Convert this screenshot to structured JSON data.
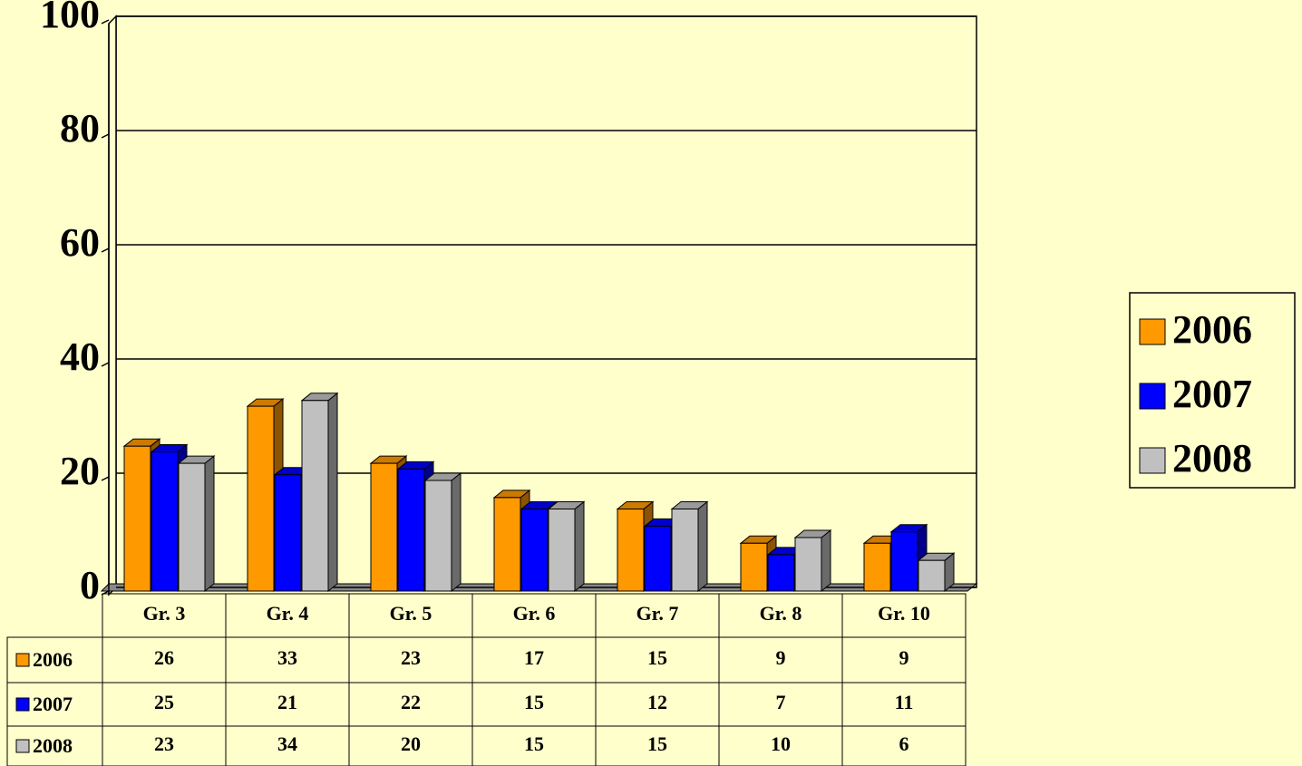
{
  "chart_data": {
    "type": "bar",
    "categories": [
      "Gr. 3",
      "Gr. 4",
      "Gr. 5",
      "Gr. 6",
      "Gr. 7",
      "Gr. 8",
      "Gr. 10"
    ],
    "series": [
      {
        "name": "2006",
        "color": "#ff9900",
        "values": [
          26,
          33,
          23,
          17,
          15,
          9,
          9
        ]
      },
      {
        "name": "2007",
        "color": "#0000ff",
        "values": [
          25,
          21,
          22,
          15,
          12,
          7,
          11
        ]
      },
      {
        "name": "2008",
        "color": "#c0c0c0",
        "values": [
          23,
          34,
          20,
          15,
          15,
          10,
          6
        ]
      }
    ],
    "ylim": [
      0,
      100
    ],
    "yticks": [
      0,
      20,
      40,
      60,
      80,
      100
    ],
    "grid": true,
    "legend": "right"
  }
}
